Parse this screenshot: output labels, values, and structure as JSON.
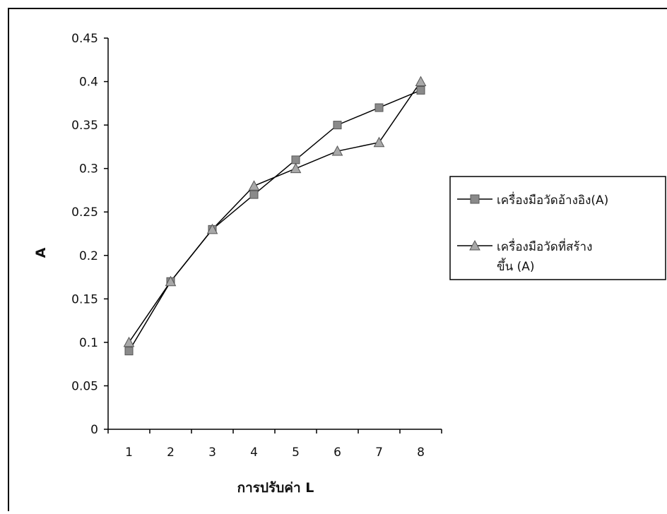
{
  "chart_data": {
    "type": "line",
    "title": "",
    "xlabel": "การปรับค่า L",
    "ylabel": "A",
    "categories": [
      "1",
      "2",
      "3",
      "4",
      "5",
      "6",
      "7",
      "8"
    ],
    "ylim": [
      0,
      0.45
    ],
    "yticks": [
      "0",
      "0.05",
      "0.1",
      "0.15",
      "0.2",
      "0.25",
      "0.3",
      "0.35",
      "0.4",
      "0.45"
    ],
    "grid": false,
    "legend_position": "right",
    "series": [
      {
        "name": "เครื่องมือวัดอ้างอิง(A)",
        "marker": "square",
        "color": "#8a8a8a",
        "values": [
          0.09,
          0.17,
          0.23,
          0.27,
          0.31,
          0.35,
          0.37,
          0.39
        ]
      },
      {
        "name": "เครื่องมือวัดที่สร้าง ขึ้น (A)",
        "name_lines": [
          "เครื่องมือวัดที่สร้าง",
          "ขึ้น (A)"
        ],
        "marker": "triangle",
        "color": "#a8a8a8",
        "values": [
          0.1,
          0.17,
          0.23,
          0.28,
          0.3,
          0.32,
          0.33,
          0.4
        ]
      }
    ],
    "line_color": "#000000",
    "frame_color": "#000000"
  }
}
